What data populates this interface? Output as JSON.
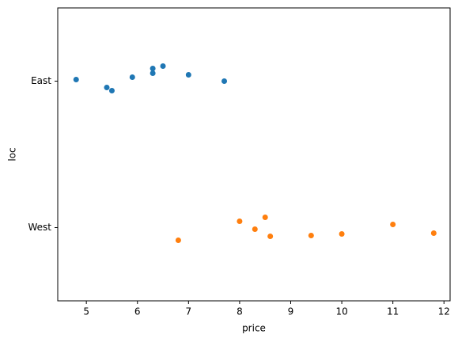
{
  "chart_data": {
    "type": "strip",
    "categories": [
      "East",
      "West"
    ],
    "series": [
      {
        "color": "#1f77b4",
        "values": [
          4.8,
          5.4,
          5.5,
          5.9,
          6.3,
          6.3,
          6.5,
          7.0,
          7.7
        ]
      },
      {
        "color": "#ff7f0e",
        "values": [
          6.8,
          8.0,
          8.3,
          8.5,
          8.6,
          9.4,
          10.0,
          11.0,
          11.8
        ]
      }
    ],
    "xlabel": "price",
    "ylabel": "loc",
    "xlim": [
      4.44,
      12.12
    ],
    "xticks": [
      5,
      6,
      7,
      8,
      9,
      10,
      11,
      12
    ]
  }
}
